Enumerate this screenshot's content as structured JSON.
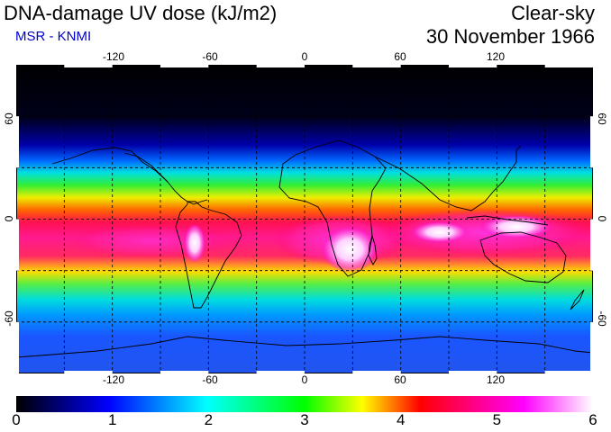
{
  "header": {
    "title": "DNA-damage UV dose (kJ/m2)",
    "subtitle": "MSR - KNMI",
    "subtitle_color": "#0000cc",
    "condition": "Clear-sky",
    "date": "30 November 1966"
  },
  "map": {
    "projection": "equirectangular",
    "lon_range": [
      -180,
      180
    ],
    "lat_range": [
      -90,
      90
    ],
    "grid": "dashed every 30 degrees",
    "lon_ticks": [
      "-120",
      "-60",
      "0",
      "60",
      "120"
    ],
    "lat_ticks": [
      "60",
      "0",
      "-60"
    ]
  },
  "colorbar": {
    "min": 0,
    "max": 6,
    "labels": [
      "0",
      "1",
      "2",
      "3",
      "4",
      "5",
      "6"
    ],
    "colors": [
      "#000000",
      "#0000ff",
      "#00ffff",
      "#00ff00",
      "#ffff00",
      "#ff0000",
      "#ff00ff",
      "#ffffff"
    ]
  }
}
